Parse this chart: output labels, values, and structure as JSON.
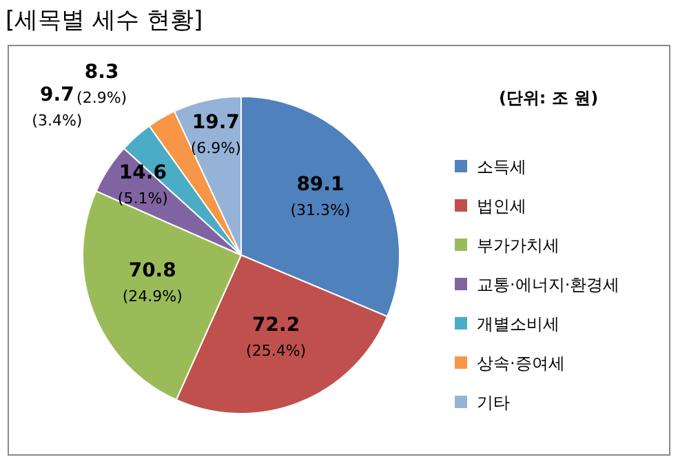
{
  "chart_data": {
    "type": "pie",
    "title": "[세목별 세수 현황]",
    "legend_title": "(단위: 조 원)",
    "categories": [
      "소득세",
      "법인세",
      "부가가치세",
      "교통·에너지·환경세",
      "개별소비세",
      "상속·증여세",
      "기타"
    ],
    "values": [
      89.1,
      72.2,
      70.8,
      14.6,
      9.7,
      8.3,
      19.7
    ],
    "colors": [
      "#4f81bd",
      "#c0504d",
      "#9bbb59",
      "#8064a2",
      "#4bacc6",
      "#f79646",
      "#95b3d7"
    ],
    "value_labels": [
      "89.1\n(31.3%)",
      "72.2\n(25.4%)",
      "70.8\n(24.9%)",
      "14.6\n(5.1%)",
      "9.7\n(3.4%)",
      "8.3\n(2.9%)",
      "19.7\n(6.9%)"
    ],
    "legend": "right"
  }
}
